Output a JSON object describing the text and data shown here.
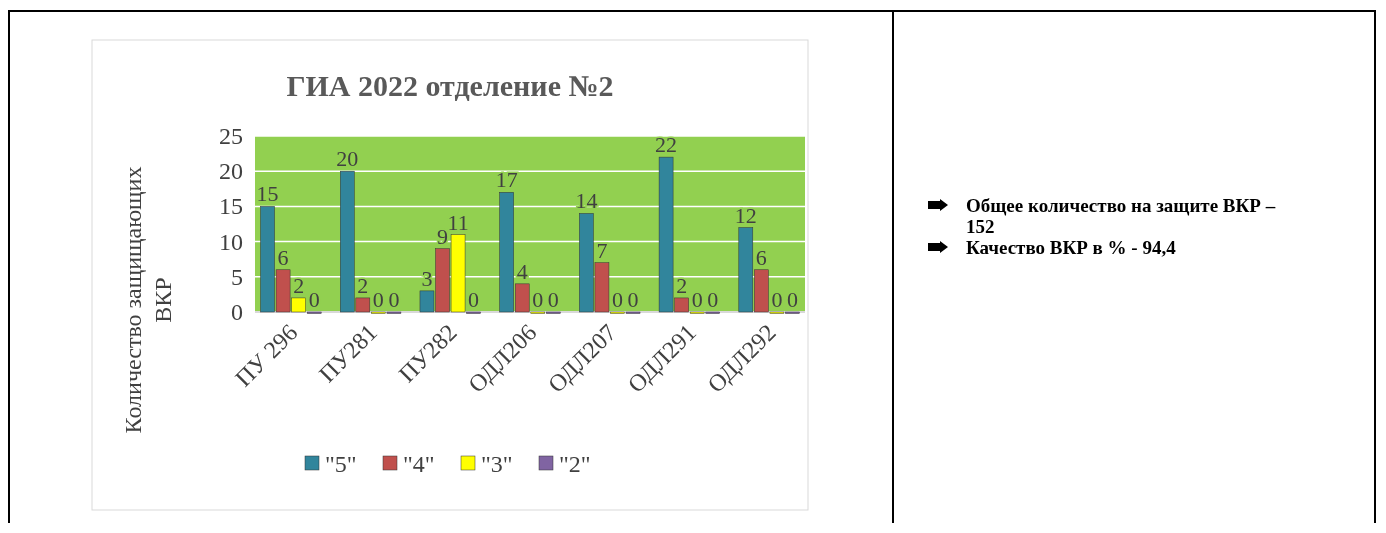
{
  "chart_data": {
    "type": "bar",
    "title": "ГИА 2022  отделение №2",
    "ylabel": "Количество защищающих ВКР",
    "categories": [
      "ПУ 296",
      "ПУ281",
      "ПУ282",
      "ОДЛ206",
      "ОДЛ207",
      "ОДЛ291",
      "ОДЛ292"
    ],
    "series": [
      {
        "name": "\"5\"",
        "color": "#31859c",
        "values": [
          15,
          20,
          3,
          17,
          14,
          22,
          12
        ]
      },
      {
        "name": "\"4\"",
        "color": "#c0504d",
        "values": [
          6,
          2,
          9,
          4,
          7,
          2,
          6
        ]
      },
      {
        "name": "\"3\"",
        "color": "#ffff00",
        "values": [
          2,
          0,
          11,
          0,
          0,
          0,
          0
        ]
      },
      {
        "name": "\"2\"",
        "color": "#8064a2",
        "values": [
          0,
          0,
          0,
          0,
          0,
          0,
          0
        ]
      }
    ],
    "ylim": [
      0,
      25
    ],
    "yticks": [
      0,
      5,
      10,
      15,
      20,
      25
    ],
    "grid": "y",
    "legend": "bottom",
    "data_labels": true,
    "annotations": [
      "Общее количество на защите ВКР – 152",
      "Качество ВКР в % - 94,4"
    ]
  }
}
